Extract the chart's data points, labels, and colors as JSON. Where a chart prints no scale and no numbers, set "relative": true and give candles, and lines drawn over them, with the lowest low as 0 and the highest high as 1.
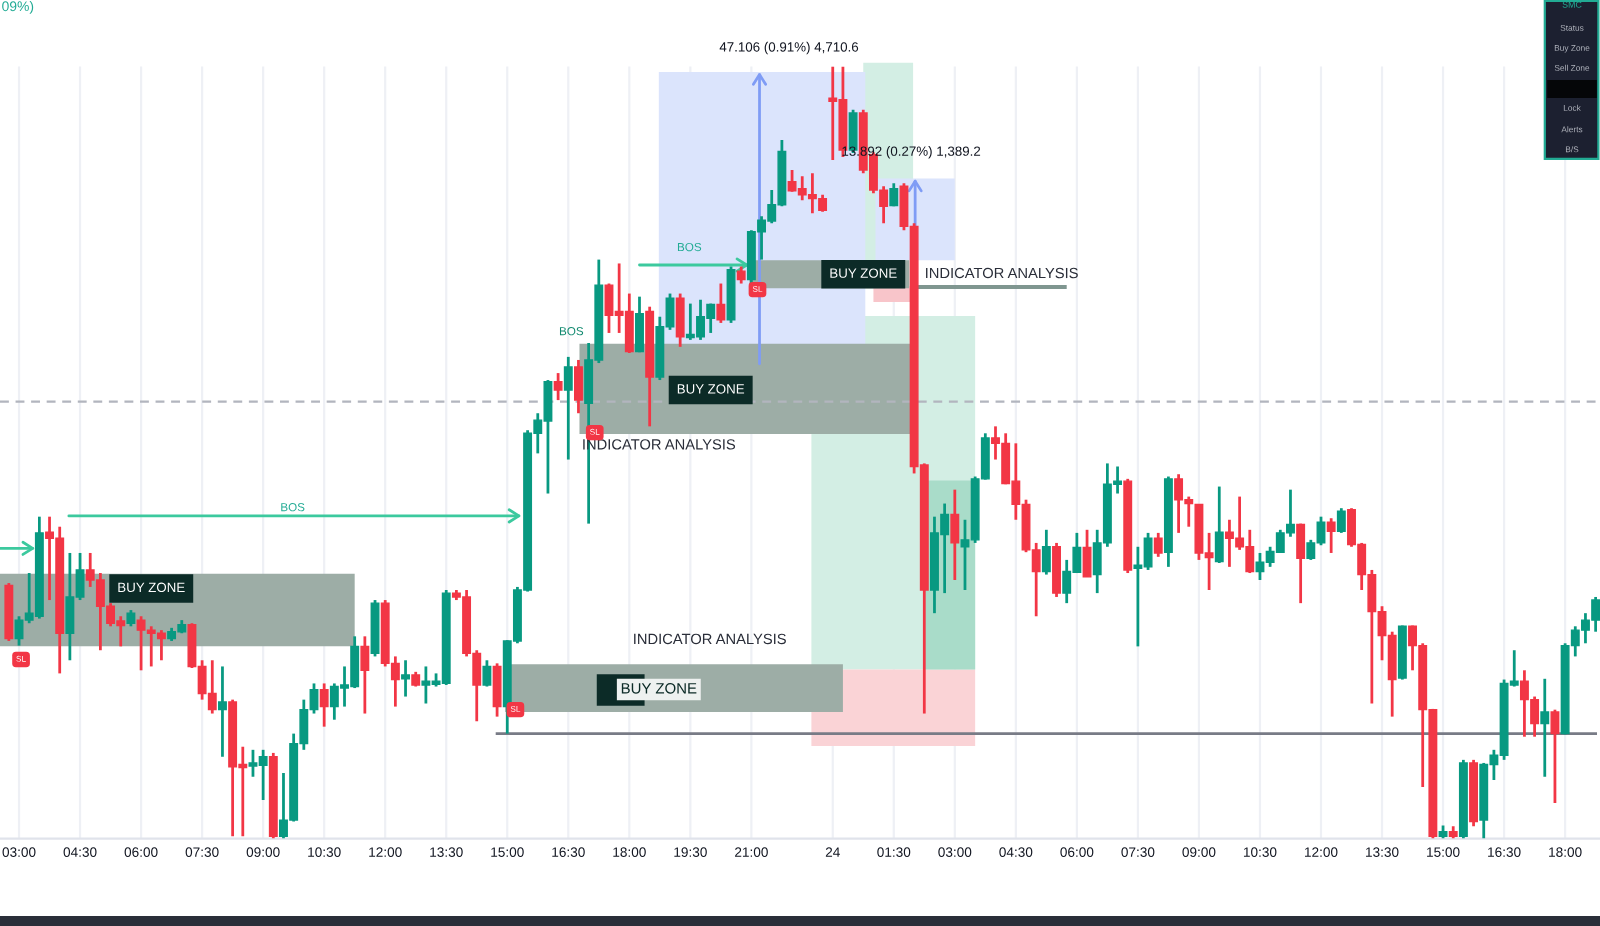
{
  "chart_data": {
    "type": "candlestick",
    "relative": true,
    "grid": "x",
    "categories": [
      null,
      "03:00",
      null,
      null,
      null,
      null,
      null,
      "04:30",
      null,
      null,
      null,
      null,
      null,
      "06:00",
      null,
      null,
      null,
      null,
      null,
      "07:30",
      null,
      null,
      null,
      null,
      null,
      "09:00",
      null,
      null,
      null,
      null,
      null,
      "10:30",
      null,
      null,
      null,
      null,
      null,
      "12:00",
      null,
      null,
      null,
      null,
      null,
      "13:30",
      null,
      null,
      null,
      null,
      null,
      "15:00",
      null,
      null,
      null,
      null,
      null,
      "16:30",
      null,
      null,
      null,
      null,
      null,
      "18:00",
      null,
      null,
      null,
      null,
      null,
      "19:30",
      null,
      null,
      null,
      null,
      null,
      "21:00",
      null,
      null,
      null,
      null,
      null,
      null,
      null,
      "24",
      null,
      null,
      null,
      null,
      null,
      "01:30",
      null,
      null,
      null,
      null,
      null,
      "03:00",
      null,
      null,
      null,
      null,
      null,
      "04:30",
      null,
      null,
      null,
      null,
      null,
      "06:00",
      null,
      null,
      null,
      null,
      null,
      "07:30",
      null,
      null,
      null,
      null,
      null,
      "09:00",
      null,
      null,
      null,
      null,
      null,
      "10:30",
      null,
      null,
      null,
      null,
      null,
      "12:00",
      null,
      null,
      null,
      null,
      null,
      "13:30",
      null,
      null,
      null,
      null,
      null,
      "15:00",
      null,
      null,
      null,
      null,
      null,
      "16:30",
      null,
      null,
      null,
      null,
      null,
      "18:00",
      null,
      null,
      null
    ],
    "ohlc": [
      [
        0.328,
        0.331,
        0.256,
        0.259
      ],
      [
        0.259,
        0.288,
        0.25,
        0.283
      ],
      [
        0.283,
        0.344,
        0.279,
        0.292
      ],
      [
        0.288,
        0.417,
        0.285,
        0.396
      ],
      [
        0.397,
        0.417,
        0.309,
        0.389
      ],
      [
        0.389,
        0.404,
        0.214,
        0.266
      ],
      [
        0.266,
        0.37,
        0.231,
        0.313
      ],
      [
        0.313,
        0.37,
        0.309,
        0.348
      ],
      [
        0.348,
        0.37,
        0.326,
        0.335
      ],
      [
        0.335,
        0.344,
        0.244,
        0.301
      ],
      [
        0.301,
        0.305,
        0.275,
        0.279
      ],
      [
        0.282,
        0.288,
        0.249,
        0.276
      ],
      [
        0.279,
        0.296,
        0.275,
        0.292
      ],
      [
        0.283,
        0.288,
        0.218,
        0.27
      ],
      [
        0.27,
        0.275,
        0.223,
        0.266
      ],
      [
        0.266,
        0.27,
        0.231,
        0.259
      ],
      [
        0.259,
        0.273,
        0.256,
        0.268
      ],
      [
        0.268,
        0.283,
        0.266,
        0.277
      ],
      [
        0.277,
        0.279,
        0.221,
        0.223
      ],
      [
        0.223,
        0.231,
        0.18,
        0.188
      ],
      [
        0.188,
        0.231,
        0.162,
        0.167
      ],
      [
        0.167,
        0.223,
        0.106,
        0.177
      ],
      [
        0.177,
        0.18,
        0.003,
        0.093
      ],
      [
        0.096,
        0.119,
        0.003,
        0.092
      ],
      [
        0.094,
        0.115,
        0.08,
        0.098
      ],
      [
        0.095,
        0.115,
        0.05,
        0.106
      ],
      [
        0.106,
        0.111,
        0,
        0.003
      ],
      [
        0.003,
        0.085,
        0,
        0.024
      ],
      [
        0.024,
        0.136,
        0.022,
        0.123
      ],
      [
        0.123,
        0.18,
        0.115,
        0.167
      ],
      [
        0.167,
        0.201,
        0.162,
        0.193
      ],
      [
        0.193,
        0.201,
        0.145,
        0.171
      ],
      [
        0.171,
        0.201,
        0.154,
        0.197
      ],
      [
        0.195,
        0.223,
        0.171,
        0.199
      ],
      [
        0.197,
        0.262,
        0.195,
        0.249
      ],
      [
        0.249,
        0.262,
        0.162,
        0.218
      ],
      [
        0.24,
        0.309,
        0.236,
        0.305
      ],
      [
        0.305,
        0.309,
        0.223,
        0.227
      ],
      [
        0.227,
        0.236,
        0.171,
        0.206
      ],
      [
        0.207,
        0.231,
        0.184,
        0.212
      ],
      [
        0.212,
        0.216,
        0.197,
        0.199
      ],
      [
        0.199,
        0.223,
        0.175,
        0.204
      ],
      [
        0.2,
        0.214,
        0.197,
        0.204
      ],
      [
        0.201,
        0.322,
        0.199,
        0.318
      ],
      [
        0.318,
        0.322,
        0.309,
        0.313
      ],
      [
        0.313,
        0.322,
        0.236,
        0.24
      ],
      [
        0.24,
        0.244,
        0.152,
        0.199
      ],
      [
        0.199,
        0.231,
        0.197,
        0.223
      ],
      [
        0.223,
        0.227,
        0.158,
        0.171
      ],
      [
        0.171,
        0.257,
        0.136,
        0.256
      ],
      [
        0.256,
        0.326,
        0.253,
        0.322
      ],
      [
        0.322,
        0.529,
        0.32,
        0.525
      ],
      [
        0.525,
        0.551,
        0.499,
        0.542
      ],
      [
        0.541,
        0.594,
        0.447,
        0.592
      ],
      [
        0.592,
        0.603,
        0.568,
        0.581
      ],
      [
        0.581,
        0.624,
        0.491,
        0.611
      ],
      [
        0.611,
        0.62,
        0.551,
        0.568
      ],
      [
        0.564,
        0.642,
        0.408,
        0.62
      ],
      [
        0.62,
        0.75,
        0.616,
        0.717
      ],
      [
        0.717,
        0.719,
        0.655,
        0.678
      ],
      [
        0.683,
        0.745,
        0.655,
        0.678
      ],
      [
        0.683,
        0.706,
        0.629,
        0.631
      ],
      [
        0.631,
        0.702,
        0.63,
        0.68
      ],
      [
        0.683,
        0.689,
        0.534,
        0.598
      ],
      [
        0.598,
        0.676,
        0.594,
        0.663
      ],
      [
        0.663,
        0.706,
        0.659,
        0.7
      ],
      [
        0.7,
        0.706,
        0.637,
        0.65
      ],
      [
        0.649,
        0.693,
        0.646,
        0.653
      ],
      [
        0.65,
        0.698,
        0.646,
        0.676
      ],
      [
        0.674,
        0.693,
        0.655,
        0.692
      ],
      [
        0.692,
        0.719,
        0.668,
        0.672
      ],
      [
        0.672,
        0.741,
        0.668,
        0.737
      ],
      [
        0.735,
        0.741,
        0.719,
        0.724
      ],
      [
        0.724,
        0.788,
        0.719,
        0.786
      ],
      [
        0.786,
        0.806,
        0.75,
        0.801
      ],
      [
        0.8,
        0.84,
        0.797,
        0.821
      ],
      [
        0.821,
        0.905,
        0.819,
        0.89
      ],
      [
        0.851,
        0.866,
        0.838,
        0.839
      ],
      [
        0.842,
        0.858,
        0.827,
        0.834
      ],
      [
        0.834,
        0.862,
        0.81,
        0.829
      ],
      [
        0.829,
        0.834,
        0.812,
        0.814
      ],
      [
        0.959,
        1,
        0.879,
        0.955
      ],
      [
        0.957,
        1,
        0.883,
        0.892
      ],
      [
        0.892,
        0.944,
        0.888,
        0.94
      ],
      [
        0.94,
        0.944,
        0.862,
        0.866
      ],
      [
        0.886,
        0.889,
        0.836,
        0.84
      ],
      [
        0.84,
        0.845,
        0.797,
        0.819
      ],
      [
        0.82,
        0.849,
        0.819,
        0.842
      ],
      [
        0.845,
        0.849,
        0.788,
        0.793
      ],
      [
        0.793,
        0.797,
        0.473,
        0.482
      ],
      [
        0.484,
        0.486,
        0.162,
        0.322
      ],
      [
        0.322,
        0.417,
        0.292,
        0.396
      ],
      [
        0.394,
        0.434,
        0.318,
        0.42
      ],
      [
        0.42,
        0.452,
        0.335,
        0.383
      ],
      [
        0.378,
        0.413,
        0.322,
        0.387
      ],
      [
        0.387,
        0.469,
        0.383,
        0.466
      ],
      [
        0.466,
        0.525,
        0.465,
        0.519
      ],
      [
        0.519,
        0.534,
        0.491,
        0.512
      ],
      [
        0.512,
        0.525,
        0.459,
        0.46
      ],
      [
        0.463,
        0.512,
        0.413,
        0.433
      ],
      [
        0.433,
        0.439,
        0.371,
        0.374
      ],
      [
        0.374,
        0.383,
        0.288,
        0.346
      ],
      [
        0.346,
        0.4,
        0.342,
        0.378
      ],
      [
        0.378,
        0.383,
        0.313,
        0.318
      ],
      [
        0.318,
        0.361,
        0.305,
        0.346
      ],
      [
        0.345,
        0.396,
        0.344,
        0.377
      ],
      [
        0.377,
        0.4,
        0.339,
        0.339
      ],
      [
        0.342,
        0.4,
        0.318,
        0.383
      ],
      [
        0.383,
        0.486,
        0.378,
        0.459
      ],
      [
        0.459,
        0.482,
        0.447,
        0.463
      ],
      [
        0.463,
        0.466,
        0.344,
        0.348
      ],
      [
        0.35,
        0.378,
        0.249,
        0.354
      ],
      [
        0.352,
        0.396,
        0.348,
        0.389
      ],
      [
        0.389,
        0.396,
        0.365,
        0.37
      ],
      [
        0.371,
        0.469,
        0.352,
        0.466
      ],
      [
        0.466,
        0.472,
        0.396,
        0.439
      ],
      [
        0.439,
        0.443,
        0.404,
        0.434
      ],
      [
        0.433,
        0.433,
        0.361,
        0.37
      ],
      [
        0.37,
        0.396,
        0.322,
        0.364
      ],
      [
        0.359,
        0.456,
        0.357,
        0.397
      ],
      [
        0.397,
        0.413,
        0.352,
        0.389
      ],
      [
        0.389,
        0.443,
        0.374,
        0.378
      ],
      [
        0.378,
        0.4,
        0.344,
        0.346
      ],
      [
        0.346,
        0.37,
        0.335,
        0.358
      ],
      [
        0.358,
        0.378,
        0.352,
        0.372
      ],
      [
        0.371,
        0.4,
        0.37,
        0.396
      ],
      [
        0.396,
        0.452,
        0.391,
        0.407
      ],
      [
        0.407,
        0.408,
        0.305,
        0.363
      ],
      [
        0.363,
        0.387,
        0.361,
        0.383
      ],
      [
        0.383,
        0.417,
        0.38,
        0.41
      ],
      [
        0.41,
        0.415,
        0.37,
        0.398
      ],
      [
        0.398,
        0.428,
        0.396,
        0.424
      ],
      [
        0.426,
        0.428,
        0.378,
        0.381
      ],
      [
        0.381,
        0.383,
        0.322,
        0.342
      ],
      [
        0.342,
        0.348,
        0.175,
        0.294
      ],
      [
        0.294,
        0.301,
        0.231,
        0.263
      ],
      [
        0.263,
        0.268,
        0.158,
        0.206
      ],
      [
        0.208,
        0.276,
        0.206,
        0.275
      ],
      [
        0.275,
        0.276,
        0.218,
        0.25
      ],
      [
        0.25,
        0.253,
        0.067,
        0.167
      ],
      [
        0.167,
        0.168,
        0,
        0.003
      ],
      [
        0.003,
        0.017,
        0,
        0.009
      ],
      [
        0.009,
        0.016,
        0,
        0.003
      ],
      [
        0.003,
        0.102,
        0,
        0.098
      ],
      [
        0.098,
        0.102,
        0.016,
        0.022
      ],
      [
        0.024,
        0.098,
        0,
        0.096
      ],
      [
        0.096,
        0.115,
        0.076,
        0.108
      ],
      [
        0.108,
        0.206,
        0.102,
        0.201
      ],
      [
        0.199,
        0.244,
        0.197,
        0.204
      ],
      [
        0.204,
        0.218,
        0.132,
        0.18
      ],
      [
        0.18,
        0.184,
        0.132,
        0.149
      ],
      [
        0.149,
        0.207,
        0.08,
        0.164
      ],
      [
        0.164,
        0.167,
        0.046,
        0.136
      ],
      [
        0.136,
        0.253,
        0.135,
        0.25
      ],
      [
        0.25,
        0.275,
        0.236,
        0.27
      ],
      [
        0.27,
        0.292,
        0.253,
        0.283
      ],
      [
        0.283,
        0.313,
        0.268,
        0.309
      ]
    ],
    "colors": [
      "#f23645",
      "#089981",
      "#089981",
      "#089981",
      "#f23645",
      "#f23645",
      "#089981",
      "#089981",
      "#f23645",
      "#f23645",
      "#f23645",
      "#f23645",
      "#089981",
      "#f23645",
      "#f23645",
      "#f23645",
      "#089981",
      "#089981",
      "#f23645",
      "#f23645",
      "#f23645",
      "#089981",
      "#f23645",
      "#f23645",
      "#089981",
      "#089981",
      "#f23645",
      "#089981",
      "#089981",
      "#089981",
      "#089981",
      "#f23645",
      "#089981",
      "#089981",
      "#089981",
      "#f23645",
      "#089981",
      "#f23645",
      "#f23645",
      "#089981",
      "#f23645",
      "#089981",
      "#089981",
      "#089981",
      "#f23645",
      "#f23645",
      "#f23645",
      "#089981",
      "#f23645",
      "#089981",
      "#089981",
      "#089981",
      "#089981",
      "#089981",
      "#f23645",
      "#089981",
      "#f23645",
      "#089981",
      "#089981",
      "#f23645",
      "#f23645",
      "#f23645",
      "#089981",
      "#f23645",
      "#089981",
      "#089981",
      "#f23645",
      "#089981",
      "#089981",
      "#089981",
      "#f23645",
      "#089981",
      "#f23645",
      "#089981",
      "#089981",
      "#089981",
      "#089981",
      "#f23645",
      "#f23645",
      "#f23645",
      "#f23645",
      "#f23645",
      "#f23645",
      "#089981",
      "#f23645",
      "#f23645",
      "#f23645",
      "#089981",
      "#f23645",
      "#f23645",
      "#f23645",
      "#089981",
      "#089981",
      "#f23645",
      "#089981",
      "#089981",
      "#089981",
      "#f23645",
      "#f23645",
      "#f23645",
      "#f23645",
      "#f23645",
      "#089981",
      "#f23645",
      "#089981",
      "#089981",
      "#f23645",
      "#089981",
      "#089981",
      "#089981",
      "#f23645",
      "#089981",
      "#089981",
      "#f23645",
      "#089981",
      "#f23645",
      "#f23645",
      "#f23645",
      "#f23645",
      "#089981",
      "#f23645",
      "#f23645",
      "#f23645",
      "#089981",
      "#089981",
      "#089981",
      "#089981",
      "#f23645",
      "#089981",
      "#089981",
      "#f23645",
      "#089981",
      "#f23645",
      "#f23645",
      "#f23645",
      "#f23645",
      "#f23645",
      "#089981",
      "#f23645",
      "#f23645",
      "#f23645",
      "#089981",
      "#f23645",
      "#089981",
      "#f23645",
      "#089981",
      "#089981",
      "#089981",
      "#089981",
      "#f23645",
      "#f23645",
      "#089981",
      "#f23645",
      "#089981",
      "#089981",
      "#089981",
      "#089981"
    ],
    "series": [
      {
        "type": "line",
        "color": "#787b86",
        "values": [
          null,
          null,
          null,
          null,
          null,
          null,
          null,
          null,
          null,
          null,
          null,
          null,
          null,
          null,
          null,
          null,
          null,
          null,
          null,
          null,
          null,
          null,
          null,
          null,
          null,
          null,
          null,
          null,
          null,
          null,
          null,
          null,
          null,
          null,
          null,
          null,
          null,
          null,
          null,
          null,
          null,
          null,
          null,
          null,
          null,
          null,
          null,
          null,
          0.136,
          0.136,
          0.136,
          0.136,
          0.136,
          0.136,
          0.136,
          0.136,
          0.136,
          0.136,
          0.136,
          0.136,
          0.136,
          0.136,
          0.136,
          0.136,
          0.136,
          0.136,
          0.136,
          0.136,
          0.136,
          0.136,
          0.136,
          0.136,
          0.136,
          0.136,
          0.136,
          0.136,
          0.136,
          0.136,
          0.136,
          0.136,
          0.136,
          0.136,
          0.136,
          0.136,
          0.136,
          0.136,
          0.136,
          0.136,
          0.136,
          0.136,
          0.136,
          0.136,
          0.136,
          0.136,
          0.136,
          0.136,
          0.136,
          0.136,
          0.136,
          0.136,
          0.136,
          0.136,
          0.136,
          0.136,
          0.136,
          0.136,
          0.136,
          0.136,
          0.136,
          0.136,
          0.136,
          0.136,
          0.136,
          0.136,
          0.136,
          0.136,
          0.136,
          0.136,
          0.136,
          0.136,
          0.136,
          0.136,
          0.136,
          0.136,
          0.136,
          0.136,
          0.136,
          0.136,
          0.136,
          0.136,
          0.136,
          0.136,
          0.136,
          0.136,
          0.136,
          0.136,
          0.136,
          0.136,
          0.136,
          0.136,
          0.136,
          0.136,
          0.136,
          0.136,
          0.136,
          0.136,
          0.136,
          0.136,
          0.136,
          0.136,
          0.136,
          0.136,
          0.136,
          0.136,
          0.136,
          0.136,
          0.136
        ]
      }
    ],
    "ref_lines": [
      {
        "axis": "y",
        "value": 0.566,
        "color": "#b2b5be",
        "line_style": "dashed"
      }
    ],
    "annotations": [
      "09%)",
      "47.106 (0.91%) 4,710.6",
      "13.892 (0.27%) 1,389.2",
      "BOS",
      "BOS",
      "BOS",
      "BUY ZONE",
      "BUY ZONE",
      "BUY ZONE",
      "BUY ZONE",
      "INDICATOR ANALYSIS",
      "INDICATOR ANALYSIS",
      "INDICATOR ANALYSIS",
      "SL",
      "SL",
      "SL",
      "SL",
      "SMC",
      "Status",
      "Buy Zone",
      "Sell Zone",
      "Lock",
      "Alerts",
      "B/S"
    ]
  }
}
